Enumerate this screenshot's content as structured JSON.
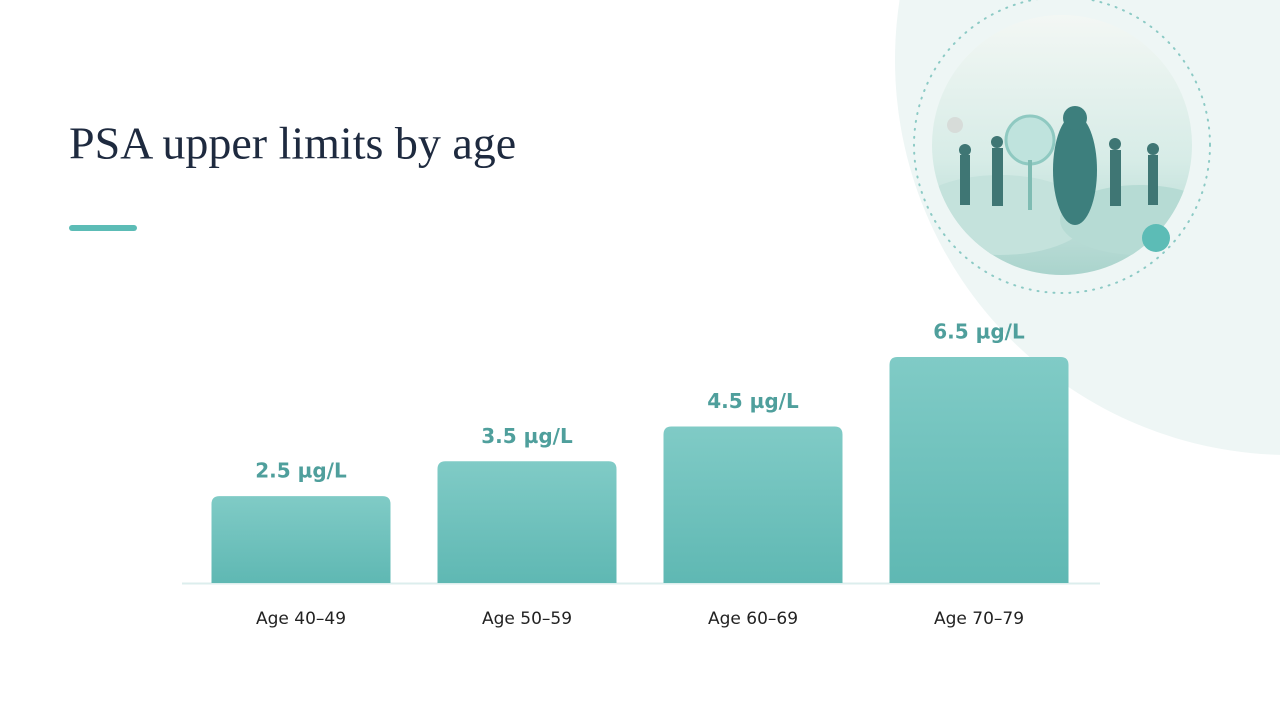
{
  "chart_data": {
    "type": "bar",
    "title": "PSA upper limits by age",
    "categories": [
      "Age 40–49",
      "Age 50–59",
      "Age 60–69",
      "Age 70–79"
    ],
    "values": [
      2.5,
      3.5,
      4.5,
      6.5
    ],
    "value_labels": [
      "2.5 µg/L",
      "3.5 µg/L",
      "4.5 µg/L",
      "6.5 µg/L"
    ],
    "color": "#6cc0bb"
  }
}
